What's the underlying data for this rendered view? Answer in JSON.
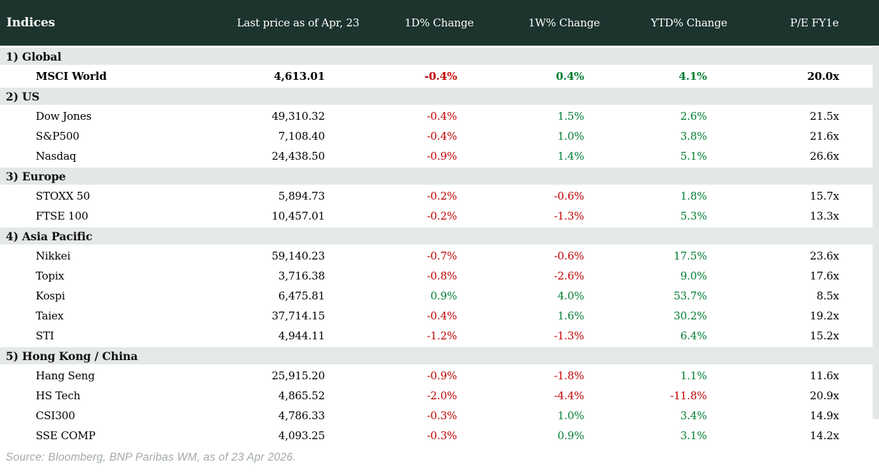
{
  "chart_data": {
    "type": "table",
    "title": "Indices",
    "columns": [
      "Indices",
      "Last price as of Apr, 23",
      "1D% Change",
      "1W% Change",
      "YTD% Change",
      "P/E FY1e"
    ],
    "sections": [
      {
        "label": "1) Global",
        "rows": [
          {
            "name": "MSCI World",
            "bold": true,
            "price": "4,613.01",
            "d1": "-0.4%",
            "w1": "0.4%",
            "ytd": "4.1%",
            "pe": "20.0x"
          }
        ]
      },
      {
        "label": "2) US",
        "rows": [
          {
            "name": "Dow Jones",
            "price": "49,310.32",
            "d1": "-0.4%",
            "w1": "1.5%",
            "ytd": "2.6%",
            "pe": "21.5x"
          },
          {
            "name": "S&P500",
            "price": "7,108.40",
            "d1": "-0.4%",
            "w1": "1.0%",
            "ytd": "3.8%",
            "pe": "21.6x"
          },
          {
            "name": "Nasdaq",
            "price": "24,438.50",
            "d1": "-0.9%",
            "w1": "1.4%",
            "ytd": "5.1%",
            "pe": "26.6x"
          }
        ]
      },
      {
        "label": "3) Europe",
        "rows": [
          {
            "name": "STOXX 50",
            "price": "5,894.73",
            "d1": "-0.2%",
            "w1": "-0.6%",
            "ytd": "1.8%",
            "pe": "15.7x"
          },
          {
            "name": "FTSE 100",
            "price": "10,457.01",
            "d1": "-0.2%",
            "w1": "-1.3%",
            "ytd": "5.3%",
            "pe": "13.3x"
          }
        ]
      },
      {
        "label": "4) Asia Pacific",
        "rows": [
          {
            "name": "Nikkei",
            "price": "59,140.23",
            "d1": "-0.7%",
            "w1": "-0.6%",
            "ytd": "17.5%",
            "pe": "23.6x"
          },
          {
            "name": "Topix",
            "price": "3,716.38",
            "d1": "-0.8%",
            "w1": "-2.6%",
            "ytd": "9.0%",
            "pe": "17.6x"
          },
          {
            "name": "Kospi",
            "price": "6,475.81",
            "d1": "0.9%",
            "w1": "4.0%",
            "ytd": "53.7%",
            "pe": "8.5x"
          },
          {
            "name": "Taiex",
            "price": "37,714.15",
            "d1": "-0.4%",
            "w1": "1.6%",
            "ytd": "30.2%",
            "pe": "19.2x"
          },
          {
            "name": "STI",
            "price": "4,944.11",
            "d1": "-1.2%",
            "w1": "-1.3%",
            "ytd": "6.4%",
            "pe": "15.2x"
          }
        ]
      },
      {
        "label": "5) Hong Kong / China",
        "rows": [
          {
            "name": "Hang Seng",
            "price": "25,915.20",
            "d1": "-0.9%",
            "w1": "-1.8%",
            "ytd": "1.1%",
            "pe": "11.6x"
          },
          {
            "name": "HS Tech",
            "price": "4,865.52",
            "d1": "-2.0%",
            "w1": "-4.4%",
            "ytd": "-11.8%",
            "pe": "20.9x"
          },
          {
            "name": "CSI300",
            "price": "4,786.33",
            "d1": "-0.3%",
            "w1": "1.0%",
            "ytd": "3.4%",
            "pe": "14.9x"
          },
          {
            "name": "SSE COMP",
            "price": "4,093.25",
            "d1": "-0.3%",
            "w1": "0.9%",
            "ytd": "3.1%",
            "pe": "14.2x"
          }
        ]
      }
    ]
  },
  "footer": {
    "source": "Source: Bloomberg, BNP Paribas WM, as of 23 Apr 2026."
  },
  "colors": {
    "header_bg": "#1c332e",
    "section_band_bg": "#e4e9e5",
    "negative": "#c00000",
    "positive": "#007d32",
    "footer_text": "#a2a9ae"
  }
}
